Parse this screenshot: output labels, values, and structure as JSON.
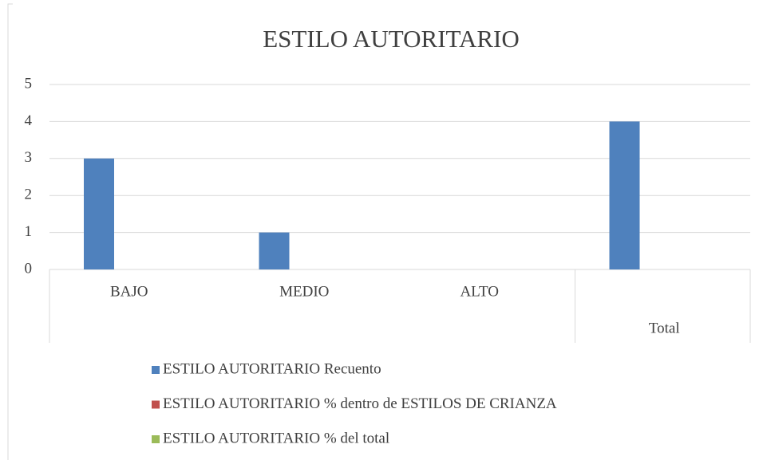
{
  "chart_data": {
    "type": "bar",
    "title": "ESTILO AUTORITARIO",
    "categories": [
      "BAJO",
      "MEDIO",
      "ALTO",
      "Total"
    ],
    "series": [
      {
        "name": "ESTILO AUTORITARIO Recuento",
        "color": "#4f81bd",
        "values": [
          3,
          1,
          0,
          4
        ]
      },
      {
        "name": "ESTILO AUTORITARIO % dentro de ESTILOS DE CRIANZA",
        "color": "#c0504d",
        "values": [
          0,
          0,
          0,
          0
        ]
      },
      {
        "name": "ESTILO AUTORITARIO % del total",
        "color": "#9bbb59",
        "values": [
          0,
          0,
          0,
          0
        ]
      }
    ],
    "ylim": [
      0,
      5
    ],
    "yticks": [
      0,
      1,
      2,
      3,
      4,
      5
    ],
    "grid": true,
    "legend": "bottom"
  }
}
